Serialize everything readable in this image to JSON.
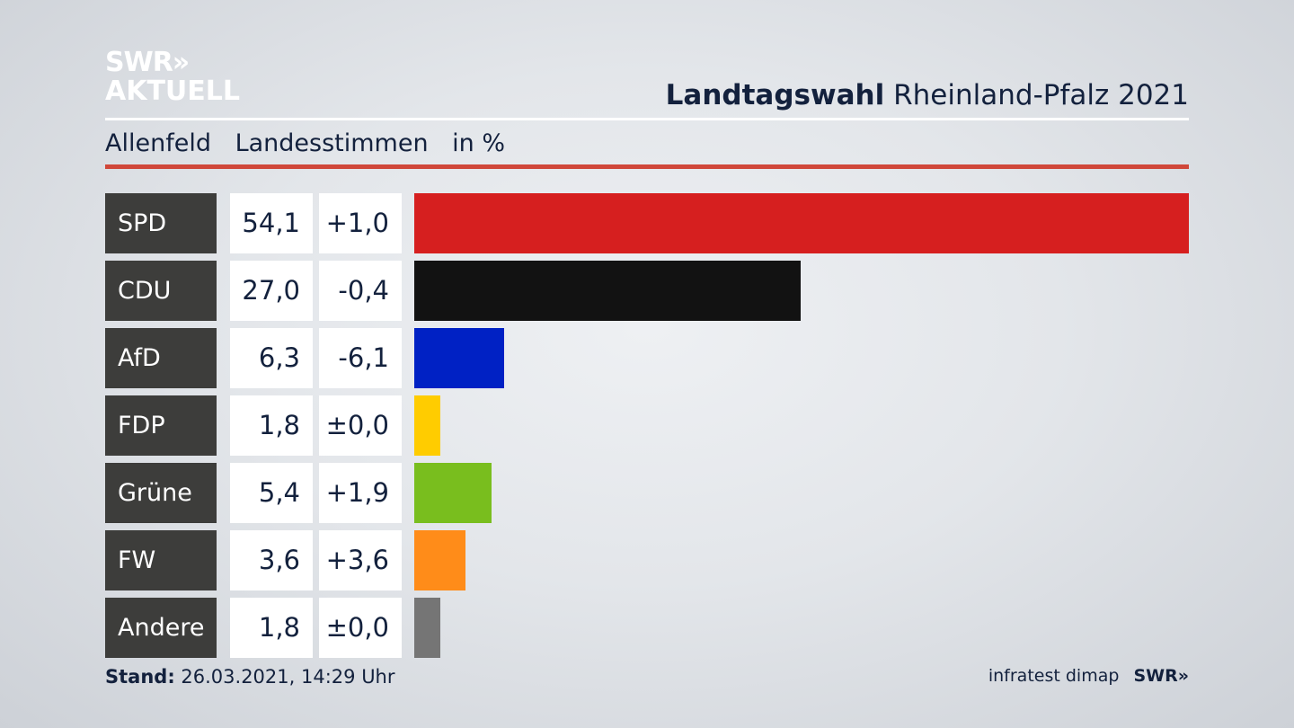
{
  "brand": {
    "logo_line1": "SWR»",
    "logo_line2": "AKTUELL"
  },
  "header": {
    "title_bold": "Landtagswahl",
    "title_rest": "Rheinland-Pfalz 2021"
  },
  "subheader": {
    "place": "Allenfeld",
    "measure": "Landesstimmen",
    "unit": "in %"
  },
  "footer": {
    "stand_label": "Stand:",
    "stand_value": "26.03.2021, 14:29 Uhr",
    "source": "infratest dimap",
    "source_logo": "SWR»"
  },
  "colors": {
    "accent_rule": "#d0473a"
  },
  "chart_data": {
    "type": "bar",
    "orientation": "horizontal",
    "categories": [
      "SPD",
      "CDU",
      "AfD",
      "FDP",
      "Grüne",
      "FW",
      "Andere"
    ],
    "values": [
      54.1,
      27.0,
      6.3,
      1.8,
      5.4,
      3.6,
      1.8
    ],
    "value_labels": [
      "54,1",
      "27,0",
      "6,3",
      "1,8",
      "5,4",
      "3,6",
      "1,8"
    ],
    "change_labels": [
      "+1,0",
      "-0,4",
      "-6,1",
      "±0,0",
      "+1,9",
      "+3,6",
      "±0,0"
    ],
    "changes": [
      1.0,
      -0.4,
      -6.1,
      0.0,
      1.9,
      3.6,
      0.0
    ],
    "colors": [
      "#d61f1f",
      "#121212",
      "#0021c4",
      "#ffcc00",
      "#79be1e",
      "#ff8c19",
      "#757575"
    ],
    "xlim": [
      0,
      54.1
    ]
  }
}
